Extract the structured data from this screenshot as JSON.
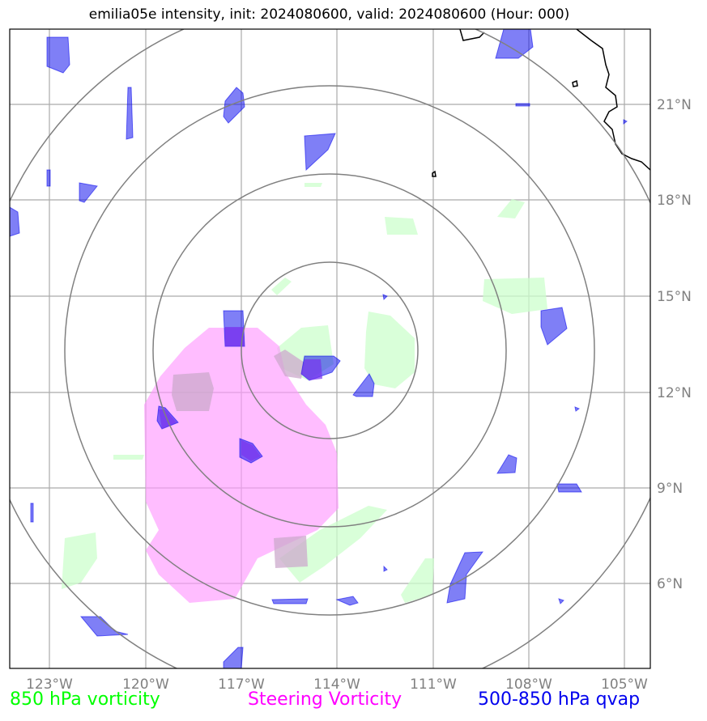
{
  "title": "emilia05e intensity, init: 2024080600, valid: 2024080600 (Hour: 000)",
  "map": {
    "lon_labels": [
      "123°W",
      "120°W",
      "117°W",
      "114°W",
      "111°W",
      "108°W",
      "105°W"
    ],
    "lat_labels": [
      "21°N",
      "18°N",
      "15°N",
      "12°N",
      "9°N",
      "6°N"
    ],
    "colors": {
      "vorticity_850": "#ccffcc",
      "steering_vorticity": "#ff99ff",
      "qvap": "#0000ee",
      "rings": "#808080",
      "grid": "#aaaaaa",
      "coast": "#000000"
    }
  },
  "legend": {
    "vorticity_850": "850 hPa vorticity",
    "steering": "Steering Vorticity",
    "qvap": "500-850 hPa qvap",
    "vorticity_850_color": "#00ff00",
    "steering_color": "#ff00ff",
    "qvap_color": "#0000ee"
  }
}
